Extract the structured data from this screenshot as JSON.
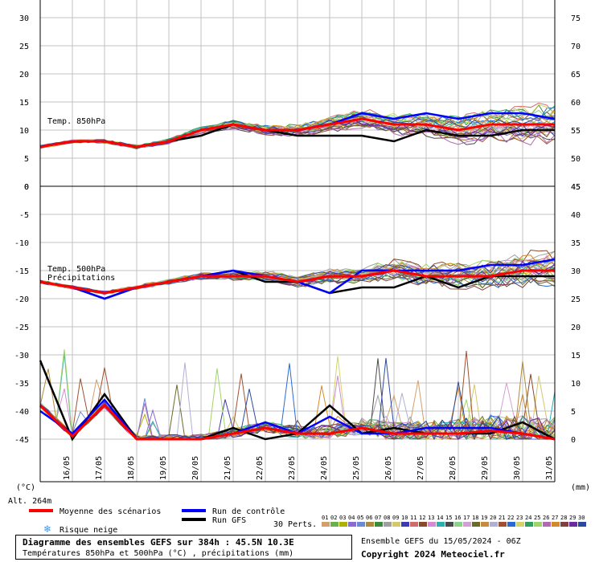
{
  "footer": {
    "title": "Diagramme des ensembles GEFS sur 384h : 45.5N 10.3E",
    "subtitle": "Températures 850hPa et 500hPa (°C) , précipitations (mm)",
    "ensemble_info": "Ensemble GEFS du 15/05/2024 - 06Z",
    "copyright": "Copyright 2024 Meteociel.fr"
  },
  "legend": {
    "mean": "Moyenne des scénarios",
    "control": "Run de contrôle",
    "gfs": "Run GFS",
    "snow": "Risque neige",
    "perturbations_label": "30 Perts.",
    "member_numbers": [
      "01",
      "02",
      "03",
      "04",
      "05",
      "06",
      "07",
      "08",
      "09",
      "10",
      "11",
      "12",
      "13",
      "14",
      "15",
      "16",
      "17",
      "18",
      "19",
      "20",
      "21",
      "22",
      "23",
      "24",
      "25",
      "26",
      "27",
      "28",
      "29",
      "30"
    ],
    "member_colors": [
      "#d4a06a",
      "#6ab04c",
      "#b0b000",
      "#8a6ad4",
      "#6a8ad4",
      "#b08a3c",
      "#3c8a3c",
      "#a0a0a0",
      "#d4c86a",
      "#3c3cb0",
      "#d46a6a",
      "#8a4a2a",
      "#d48ad4",
      "#2ab0b0",
      "#4a4a4a",
      "#8ad48a",
      "#d4a0d4",
      "#6a6a2a",
      "#c88a3c",
      "#b0b0d4",
      "#a05030",
      "#2a6ad4",
      "#d4d46a",
      "#30a060",
      "#a0d46a",
      "#b06ab0",
      "#d48a2a",
      "#804040",
      "#6a2aa0",
      "#2a4aa0"
    ]
  },
  "colors": {
    "mean": "#ff0000",
    "control": "#0000ff",
    "gfs": "#000000",
    "snow": "#3399ff"
  },
  "chart_data": [
    {
      "type": "line",
      "title": "Temp. 850hPa",
      "x": [
        "15/05 06Z",
        "16/05",
        "17/05",
        "18/05",
        "19/05",
        "20/05",
        "21/05",
        "22/05",
        "23/05",
        "24/05",
        "25/05",
        "26/05",
        "27/05",
        "28/05",
        "29/05",
        "30/05",
        "31/05"
      ],
      "ylabel": "(°C)",
      "ylim": [
        0,
        30
      ],
      "yticks_left": [
        0,
        5,
        10,
        15,
        20,
        25,
        30
      ],
      "yticks_right": [
        45,
        50,
        55,
        60,
        65,
        70,
        75
      ],
      "series": [
        {
          "name": "Moyenne des scénarios",
          "values": [
            7,
            8,
            8,
            7,
            8,
            10,
            11,
            10,
            10,
            11,
            12,
            11,
            11,
            10,
            11,
            11,
            11
          ]
        },
        {
          "name": "Run de contrôle",
          "values": [
            7,
            8,
            8,
            7,
            8,
            10,
            11,
            10,
            10,
            11,
            13,
            12,
            13,
            12,
            13,
            13,
            12
          ]
        },
        {
          "name": "Run GFS",
          "values": [
            7,
            8,
            8,
            7,
            8,
            9,
            11,
            10,
            9,
            9,
            9,
            8,
            10,
            9,
            9,
            10,
            10
          ]
        }
      ]
    },
    {
      "type": "line",
      "title": "Temp. 500hPa",
      "x": [
        "15/05 06Z",
        "16/05",
        "17/05",
        "18/05",
        "19/05",
        "20/05",
        "21/05",
        "22/05",
        "23/05",
        "24/05",
        "25/05",
        "26/05",
        "27/05",
        "28/05",
        "29/05",
        "30/05",
        "31/05"
      ],
      "ylim": [
        -50,
        0
      ],
      "yticks_left": [
        -45,
        -40,
        -35,
        -30,
        -25,
        -20,
        -15,
        -10,
        -5,
        0
      ],
      "series": [
        {
          "name": "Moyenne des scénarios",
          "values": [
            -17,
            -18,
            -19,
            -18,
            -17,
            -16,
            -16,
            -16,
            -17,
            -16,
            -16,
            -15,
            -16,
            -16,
            -16,
            -15,
            -15
          ]
        },
        {
          "name": "Run de contrôle",
          "values": [
            -17,
            -18,
            -20,
            -18,
            -17,
            -16,
            -15,
            -16,
            -17,
            -19,
            -15,
            -15,
            -15,
            -15,
            -14,
            -14,
            -13
          ]
        },
        {
          "name": "Run GFS",
          "values": [
            -17,
            -18,
            -20,
            -18,
            -17,
            -16,
            -15,
            -17,
            -17,
            -19,
            -18,
            -18,
            -16,
            -18,
            -16,
            -16,
            -16
          ]
        }
      ]
    },
    {
      "type": "line",
      "title": "Précipitations",
      "x": [
        "15/05 06Z",
        "16/05",
        "17/05",
        "18/05",
        "19/05",
        "20/05",
        "21/05",
        "22/05",
        "23/05",
        "24/05",
        "25/05",
        "26/05",
        "27/05",
        "28/05",
        "29/05",
        "30/05",
        "31/05"
      ],
      "ylabel": "(mm)",
      "ylim": [
        0,
        45
      ],
      "yticks_right": [
        0,
        5,
        10,
        15,
        20,
        25,
        30,
        35,
        40,
        45
      ],
      "series": [
        {
          "name": "Moyenne des scénarios",
          "values": [
            6,
            0.5,
            6,
            0,
            0,
            0,
            1,
            2,
            1,
            1,
            2,
            1,
            1,
            1,
            1.5,
            1,
            0
          ]
        },
        {
          "name": "Run de contrôle",
          "values": [
            5,
            1,
            7,
            0,
            0,
            0,
            1,
            3,
            1,
            4,
            1,
            1,
            2,
            2,
            2,
            1,
            0
          ]
        },
        {
          "name": "Run GFS",
          "values": [
            14,
            0,
            8,
            0,
            0,
            0,
            2,
            0,
            1,
            6,
            1,
            2,
            1,
            1,
            1,
            3,
            0
          ]
        }
      ]
    }
  ],
  "axis": {
    "date_labels": [
      "16/05",
      "17/05",
      "18/05",
      "19/05",
      "20/05",
      "21/05",
      "22/05",
      "23/05",
      "24/05",
      "25/05",
      "26/05",
      "27/05",
      "28/05",
      "29/05",
      "30/05",
      "31/05"
    ],
    "left_unit": "(°C)",
    "right_unit": "(mm)",
    "altitude": "Alt. 264m"
  }
}
